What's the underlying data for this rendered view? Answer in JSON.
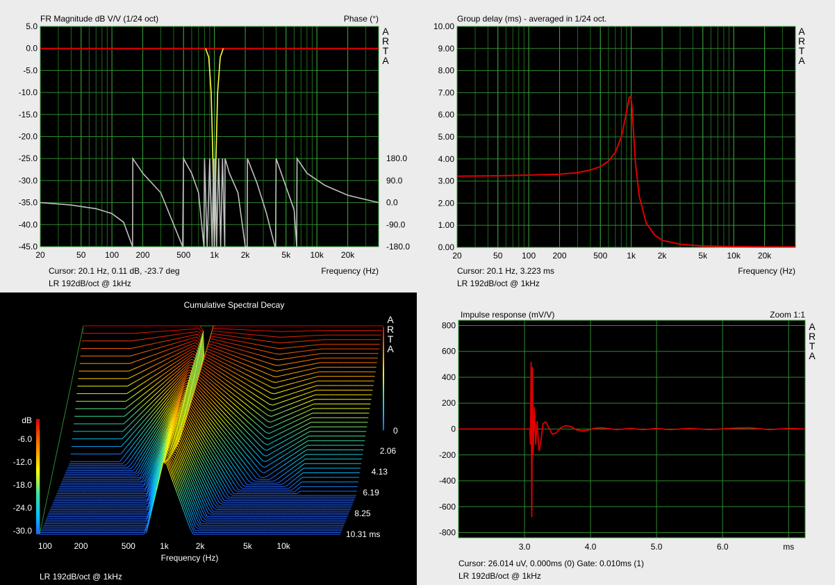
{
  "chart_data": [
    {
      "id": "fr",
      "type": "line",
      "title": "FR Magnitude dB V/V (1/24 oct)",
      "right_title": "Phase (°)",
      "side_text": "ARTA",
      "x_scale": "log",
      "xlim": [
        20,
        40000
      ],
      "ylim": [
        -45,
        5
      ],
      "y2lim": [
        -180,
        180
      ],
      "x_ticks": [
        {
          "v": 20,
          "t": "20"
        },
        {
          "v": 50,
          "t": "50"
        },
        {
          "v": 100,
          "t": "100"
        },
        {
          "v": 200,
          "t": "200"
        },
        {
          "v": 500,
          "t": "500"
        },
        {
          "v": 1000,
          "t": "1k"
        },
        {
          "v": 2000,
          "t": "2k"
        },
        {
          "v": 5000,
          "t": "5k"
        },
        {
          "v": 10000,
          "t": "10k"
        },
        {
          "v": 20000,
          "t": "20k"
        }
      ],
      "y_ticks": [
        "5.0",
        "0.0",
        "-5.0",
        "-10.0",
        "-15.0",
        "-20.0",
        "-25.0",
        "-30.0",
        "-35.0",
        "-40.0",
        "-45.0"
      ],
      "y2_ticks": [
        "180.0",
        "90.0",
        "0.0",
        "-90.0",
        "-180.0"
      ],
      "xlabel": "Frequency (Hz)",
      "cursor": "Cursor: 20.1 Hz, 0.11 dB, -23.7 deg",
      "footer": "LR 192dB/oct @ 1kHz",
      "series": [
        {
          "role": "magnitude",
          "color": "#e00000",
          "x": [
            20,
            500,
            800,
            900,
            950,
            980,
            1000,
            1020,
            1050,
            1100,
            1200,
            1500,
            40000
          ],
          "y": [
            0,
            0,
            0,
            0,
            0,
            0,
            0,
            0,
            0,
            0,
            0,
            0,
            0
          ]
        },
        {
          "role": "notch",
          "color": "#ffff40",
          "x": [
            820,
            880,
            930,
            965,
            990,
            1000,
            1010,
            1035,
            1075,
            1140,
            1220
          ],
          "y": [
            0,
            -2,
            -10,
            -25,
            -40,
            -45,
            -40,
            -25,
            -10,
            -2,
            0
          ]
        },
        {
          "role": "phase",
          "color": "#c0c0c0",
          "x": [
            20,
            40,
            70,
            100,
            130,
            159,
            160,
            200,
            300,
            490,
            500,
            600,
            700,
            790,
            800,
            850,
            900,
            950,
            980,
            1000,
            1020,
            1050,
            1100,
            1150,
            1200,
            1260,
            1270,
            1400,
            1700,
            2000,
            2090,
            2100,
            2600,
            3200,
            3900,
            3950,
            4000,
            6000,
            6350,
            6400,
            8000,
            12000,
            20000,
            40000
          ],
          "y": [
            0,
            -10,
            -25,
            -45,
            -80,
            -180,
            180,
            120,
            40,
            -180,
            180,
            120,
            40,
            -180,
            180,
            -180,
            180,
            -180,
            180,
            -180,
            180,
            -180,
            180,
            -180,
            180,
            -180,
            180,
            120,
            40,
            -180,
            -180,
            180,
            80,
            -40,
            -180,
            -180,
            180,
            -30,
            -180,
            180,
            120,
            70,
            30,
            0
          ]
        }
      ]
    },
    {
      "id": "gd",
      "type": "line",
      "title": "Group delay (ms) - averaged in 1/24 oct.",
      "side_text": "ARTA",
      "x_scale": "log",
      "xlim": [
        20,
        40000
      ],
      "ylim": [
        0,
        10
      ],
      "x_ticks": [
        {
          "v": 20,
          "t": "20"
        },
        {
          "v": 50,
          "t": "50"
        },
        {
          "v": 100,
          "t": "100"
        },
        {
          "v": 200,
          "t": "200"
        },
        {
          "v": 500,
          "t": "500"
        },
        {
          "v": 1000,
          "t": "1k"
        },
        {
          "v": 2000,
          "t": "2k"
        },
        {
          "v": 5000,
          "t": "5k"
        },
        {
          "v": 10000,
          "t": "10k"
        },
        {
          "v": 20000,
          "t": "20k"
        }
      ],
      "y_ticks": [
        "10.00",
        "9.00",
        "8.00",
        "7.00",
        "6.00",
        "5.00",
        "4.00",
        "3.00",
        "2.00",
        "1.00",
        "0.00"
      ],
      "xlabel": "Frequency (Hz)",
      "cursor": "Cursor: 20.1 Hz, 3.223 ms",
      "footer": "LR 192dB/oct @ 1kHz",
      "series": [
        {
          "role": "group-delay",
          "color": "#e00000",
          "x": [
            20,
            50,
            100,
            200,
            300,
            400,
            500,
            600,
            700,
            800,
            880,
            930,
            960,
            990,
            1000,
            1020,
            1060,
            1100,
            1200,
            1400,
            1700,
            2000,
            3000,
            5000,
            10000,
            20000,
            40000
          ],
          "y": [
            3.22,
            3.24,
            3.27,
            3.31,
            3.38,
            3.5,
            3.65,
            3.9,
            4.3,
            5.0,
            5.9,
            6.5,
            6.8,
            6.8,
            6.7,
            6.3,
            5.0,
            3.8,
            2.3,
            1.1,
            0.55,
            0.32,
            0.14,
            0.06,
            0.03,
            0.02,
            0.02
          ]
        }
      ]
    },
    {
      "id": "csd",
      "type": "area",
      "title": "Cumulative Spectral Decay",
      "side_text": "ARTA",
      "x_scale": "log",
      "xlim": [
        90,
        30000
      ],
      "zlim": [
        -30,
        0
      ],
      "tlim": [
        0,
        10.31
      ],
      "x_ticks": [
        {
          "v": 100,
          "t": "100"
        },
        {
          "v": 200,
          "t": "200"
        },
        {
          "v": 500,
          "t": "500"
        },
        {
          "v": 1000,
          "t": "1k"
        },
        {
          "v": 2000,
          "t": "2k"
        },
        {
          "v": 5000,
          "t": "5k"
        },
        {
          "v": 10000,
          "t": "10k"
        }
      ],
      "z_unit": "dB",
      "z_ticks": [
        "-6.0",
        "-12.0",
        "-18.0",
        "-24.0",
        "-30.0"
      ],
      "z_top": "0",
      "t_ticks": [
        "2.06",
        "4.13",
        "6.19",
        "8.25",
        "10.31 ms"
      ],
      "xlabel": "Frequency (Hz)",
      "footer": "LR 192dB/oct @ 1kHz",
      "slices": 60
    },
    {
      "id": "ir",
      "type": "line",
      "title": "Impulse response (mV/V)",
      "right_title": "Zoom 1:1",
      "side_text": "ARTA",
      "xlim": [
        2.0,
        7.25
      ],
      "ylim": [
        -840,
        840
      ],
      "x_ticks": [
        {
          "v": 3.0,
          "t": "3.0"
        },
        {
          "v": 4.0,
          "t": "4.0"
        },
        {
          "v": 5.0,
          "t": "5.0"
        },
        {
          "v": 6.0,
          "t": "6.0"
        }
      ],
      "x_unit": "ms",
      "y_ticks": [
        "800",
        "600",
        "400",
        "200",
        "0",
        "-200",
        "-400",
        "-600",
        "-800"
      ],
      "cursor": "Cursor: 26.014 uV, 0.000ms (0)  Gate: 0.010ms (1)",
      "footer": "LR 192dB/oct @ 1kHz",
      "series": [
        {
          "role": "impulse",
          "color": "#e00000",
          "x": [
            2.0,
            3.08,
            3.09,
            3.1,
            3.11,
            3.12,
            3.13,
            3.15,
            3.17,
            3.19,
            3.22,
            3.25,
            3.28,
            3.32,
            3.37,
            3.42,
            3.48,
            3.55,
            3.62,
            3.7,
            3.78,
            3.86,
            3.95,
            4.05,
            4.15,
            4.25,
            4.4,
            4.6,
            4.8,
            5.0,
            5.2,
            5.5,
            5.8,
            6.1,
            6.4,
            6.7,
            7.0,
            7.25
          ],
          "y": [
            0,
            0,
            -120,
            520,
            -680,
            480,
            -200,
            170,
            -120,
            60,
            -170,
            -90,
            40,
            55,
            10,
            -40,
            -30,
            10,
            25,
            20,
            -5,
            -15,
            -10,
            5,
            10,
            5,
            -5,
            5,
            -5,
            5,
            -5,
            5,
            -5,
            5,
            10,
            -5,
            5,
            0
          ]
        }
      ]
    }
  ]
}
